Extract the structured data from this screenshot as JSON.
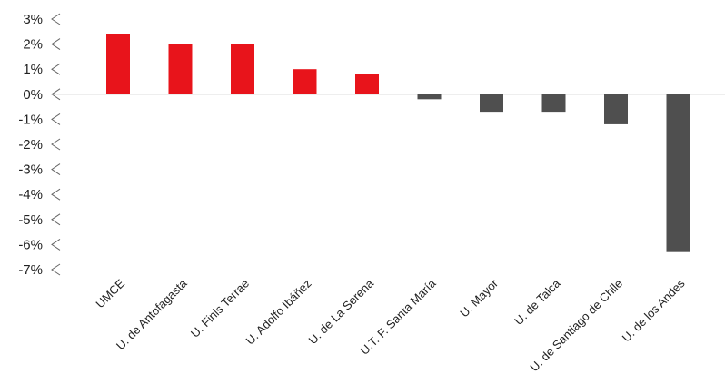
{
  "chart_data": {
    "type": "bar",
    "categories": [
      "UMCE",
      "U. de Antofagasta",
      "U. Finis Terrae",
      "U. Adolfo Ibáñez",
      "U. de La Serena",
      "U.T. F. Santa María",
      "U. Mayor",
      "U. de Talca",
      "U. de Santiago de Chile",
      "U. de los Andes"
    ],
    "values": [
      2.4,
      2.0,
      2.0,
      1.0,
      0.8,
      -0.2,
      -0.7,
      -0.7,
      -1.2,
      -6.3
    ],
    "y_ticks": [
      {
        "value": 3,
        "label": "3%"
      },
      {
        "value": 2,
        "label": "2%"
      },
      {
        "value": 1,
        "label": "1%"
      },
      {
        "value": 0,
        "label": "0%"
      },
      {
        "value": -1,
        "label": "-1%"
      },
      {
        "value": -2,
        "label": "-2%"
      },
      {
        "value": -3,
        "label": "-3%"
      },
      {
        "value": -4,
        "label": "-4%"
      },
      {
        "value": -5,
        "label": "-5%"
      },
      {
        "value": -6,
        "label": "-6%"
      },
      {
        "value": -7,
        "label": "-7%"
      }
    ],
    "title": "",
    "xlabel": "",
    "ylabel": "",
    "ylim": [
      -7,
      3
    ],
    "grid": false,
    "legend": "none",
    "colors": {
      "positive": "#e8141b",
      "negative": "#4f4f4f",
      "baseline": "#bdbdbd",
      "tick_marker": "#666666"
    }
  }
}
